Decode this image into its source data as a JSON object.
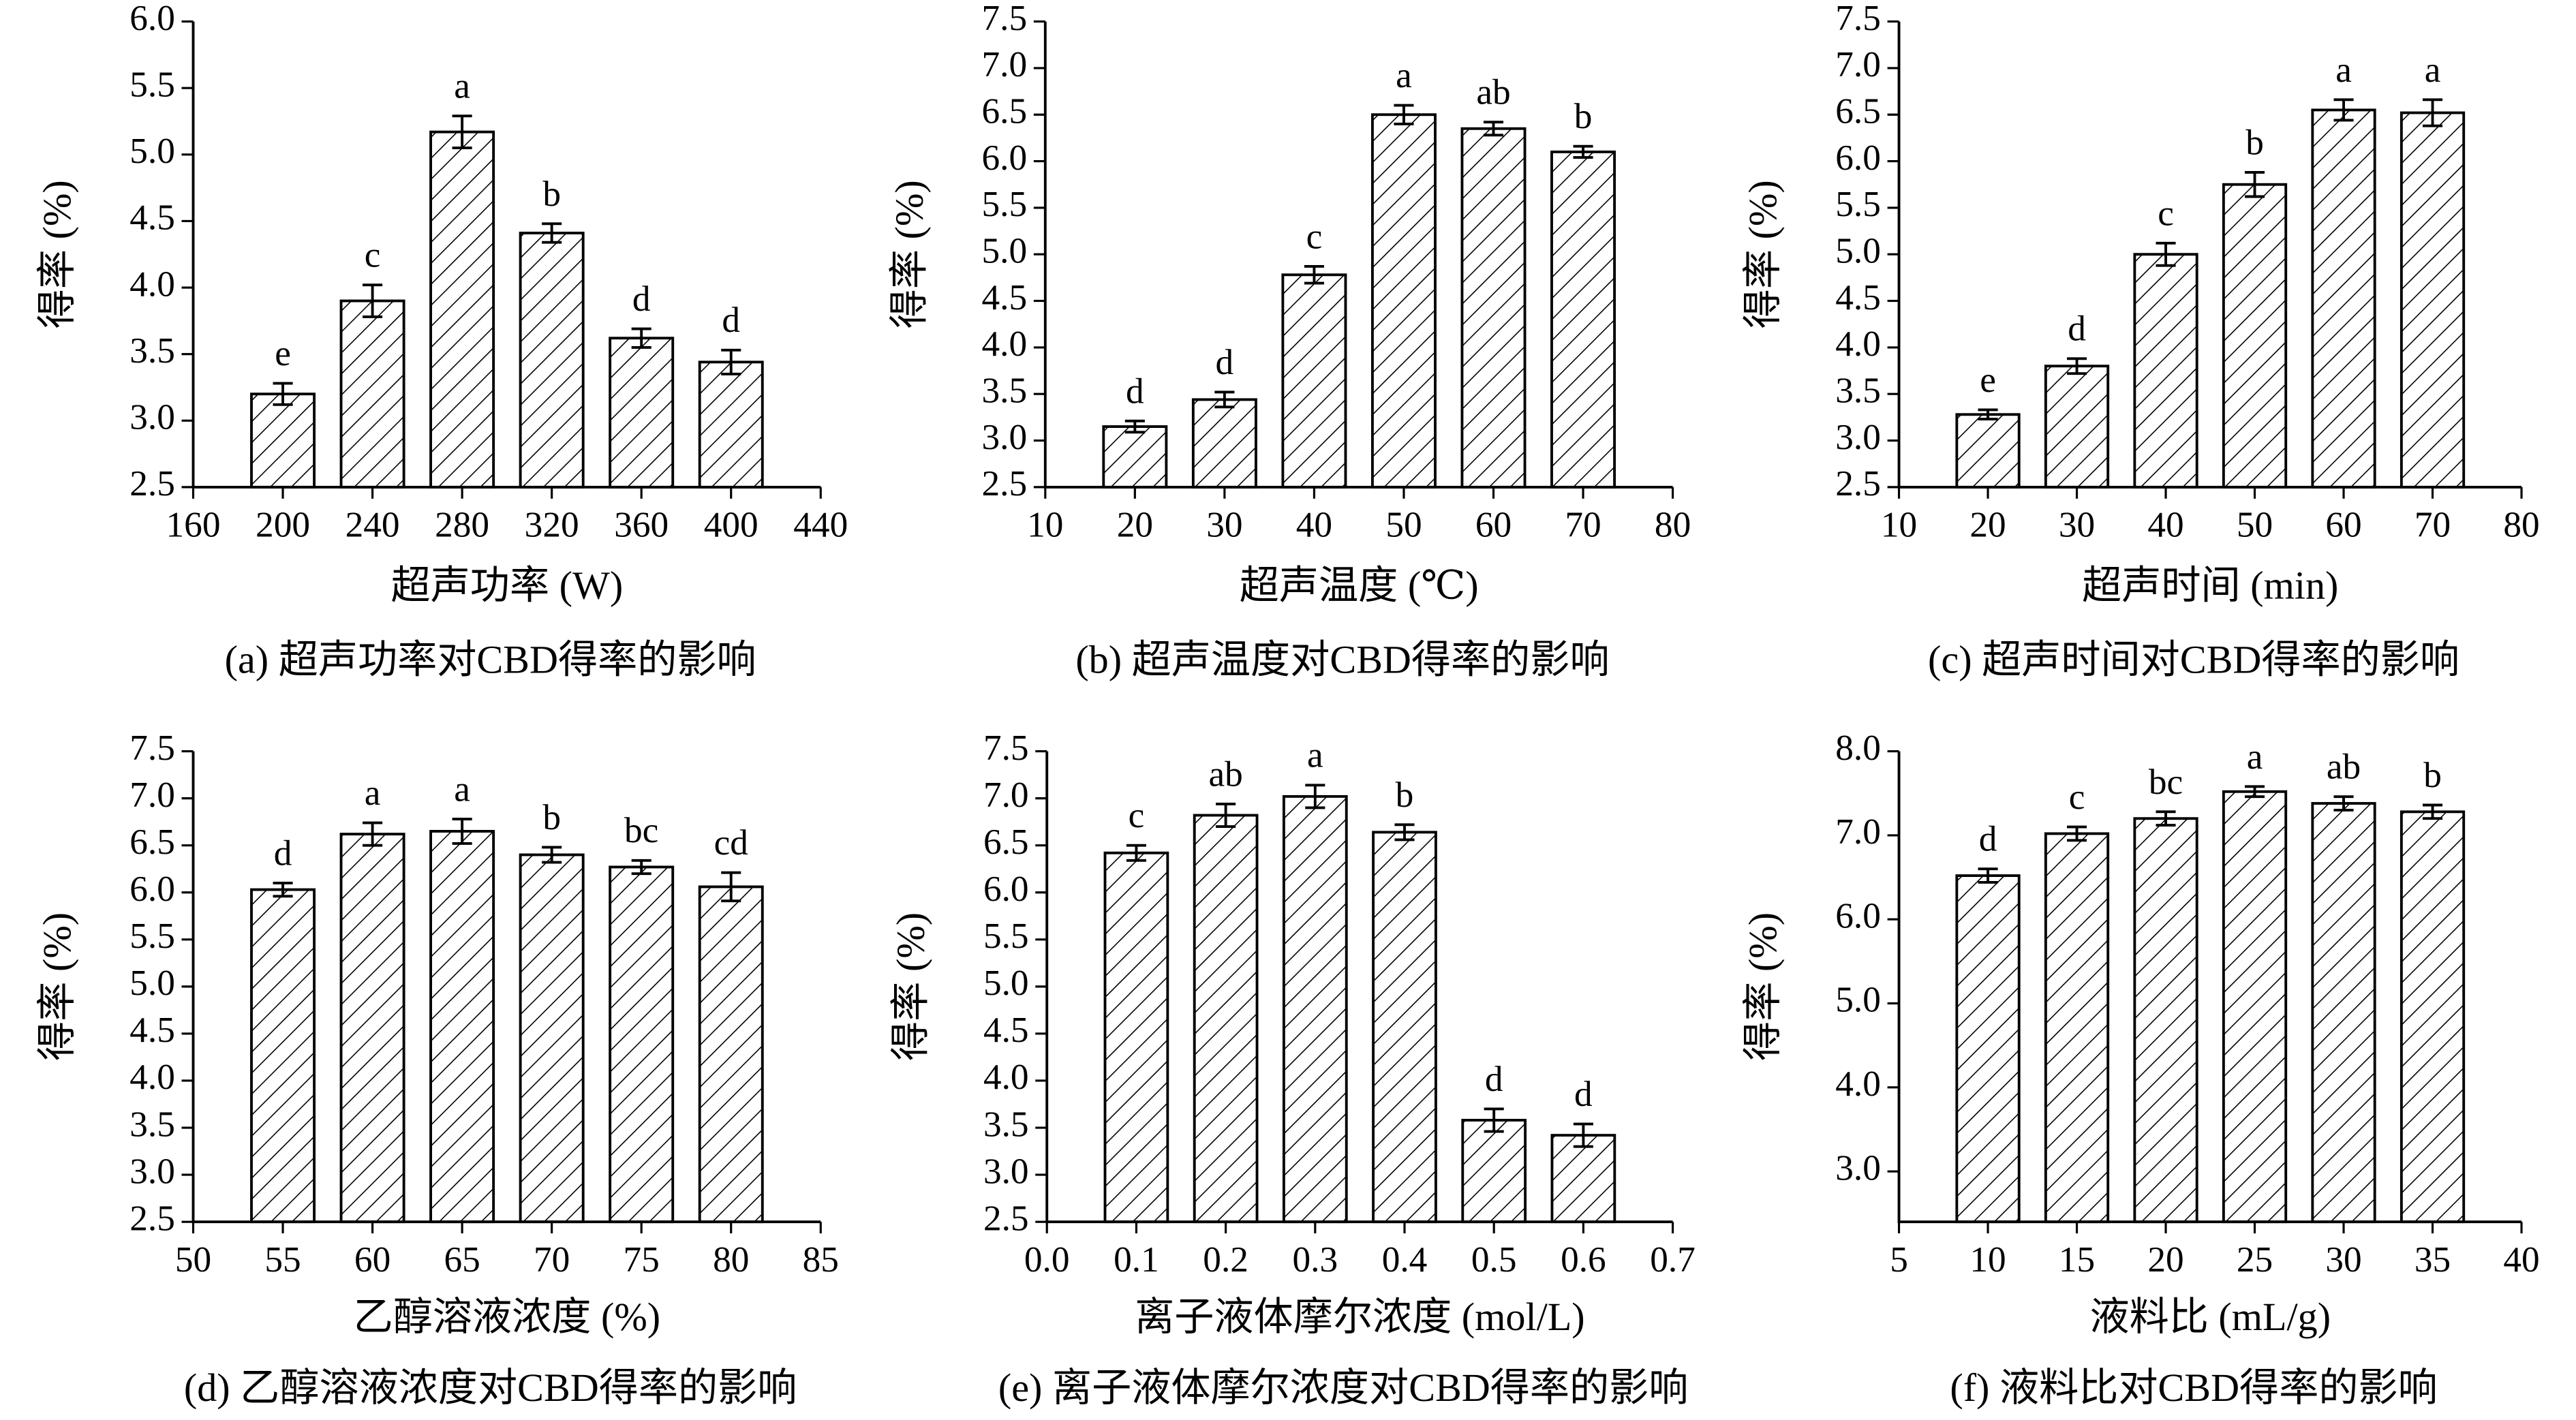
{
  "chart_data": [
    {
      "type": "bar",
      "title": "(a) 超声功率对CBD得率的影响",
      "x_label": "超声功率 (W)",
      "y_label": "得率 (%)",
      "x": [
        200,
        240,
        280,
        320,
        360,
        400
      ],
      "values": [
        3.2,
        3.9,
        5.17,
        4.41,
        3.62,
        3.44
      ],
      "errors": [
        0.08,
        0.12,
        0.12,
        0.07,
        0.07,
        0.09
      ],
      "annotations": [
        "e",
        "c",
        "a",
        "b",
        "d",
        "d"
      ],
      "color": "#000000",
      "xlim": [
        160,
        440
      ],
      "xticks": [
        160,
        200,
        240,
        280,
        320,
        360,
        400,
        440
      ],
      "ylim": [
        2.5,
        6
      ],
      "yticks": [
        2.5,
        {
          "value": 3,
          "label": "3.0"
        },
        3.5,
        {
          "value": 4,
          "label": "4.0"
        },
        4.5,
        {
          "value": 5,
          "label": "5.0"
        },
        5.5,
        {
          "value": 6,
          "label": "6.0"
        }
      ]
    },
    {
      "type": "bar",
      "title": "(b) 超声温度对CBD得率的影响",
      "x_label": "超声温度 (℃)",
      "y_label": "得率 (%)",
      "x": [
        20,
        30,
        40,
        50,
        60,
        70
      ],
      "values": [
        3.15,
        3.44,
        4.78,
        6.5,
        6.35,
        6.1
      ],
      "errors": [
        0.06,
        0.08,
        0.09,
        0.1,
        0.07,
        0.06
      ],
      "annotations": [
        "d",
        "d",
        "c",
        "a",
        "ab",
        "b"
      ],
      "color": "#000000",
      "xlim": [
        10,
        80
      ],
      "xticks": [
        10,
        20,
        30,
        40,
        50,
        60,
        70,
        80
      ],
      "ylim": [
        2.5,
        7.5
      ],
      "yticks": [
        2.5,
        {
          "value": 3,
          "label": "3.0"
        },
        3.5,
        {
          "value": 4,
          "label": "4.0"
        },
        4.5,
        {
          "value": 5,
          "label": "5.0"
        },
        5.5,
        {
          "value": 6,
          "label": "6.0"
        },
        6.5,
        {
          "value": 7,
          "label": "7.0"
        },
        7.5
      ]
    },
    {
      "type": "bar",
      "title": "(c) 超声时间对CBD得率的影响",
      "x_label": "超声时间 (min)",
      "y_label": "得率 (%)",
      "x": [
        20,
        30,
        40,
        50,
        60,
        70
      ],
      "values": [
        3.28,
        3.8,
        5.0,
        5.75,
        6.55,
        6.52
      ],
      "errors": [
        0.05,
        0.08,
        0.12,
        0.13,
        0.11,
        0.14
      ],
      "annotations": [
        "e",
        "d",
        "c",
        "b",
        "a",
        "a"
      ],
      "color": "#000000",
      "xlim": [
        10,
        80
      ],
      "xticks": [
        10,
        20,
        30,
        40,
        50,
        60,
        70,
        80
      ],
      "ylim": [
        2.5,
        7.5
      ],
      "yticks": [
        2.5,
        {
          "value": 3,
          "label": "3.0"
        },
        3.5,
        {
          "value": 4,
          "label": "4.0"
        },
        4.5,
        {
          "value": 5,
          "label": "5.0"
        },
        5.5,
        {
          "value": 6,
          "label": "6.0"
        },
        6.5,
        {
          "value": 7,
          "label": "7.0"
        },
        7.5
      ]
    },
    {
      "type": "bar",
      "title": "(d) 乙醇溶液浓度对CBD得率的影响",
      "x_label": "乙醇溶液浓度 (%)",
      "y_label": "得率 (%)",
      "x": [
        55,
        60,
        65,
        70,
        75,
        80
      ],
      "values": [
        6.03,
        6.62,
        6.65,
        6.4,
        6.27,
        6.06
      ],
      "errors": [
        0.07,
        0.12,
        0.13,
        0.08,
        0.07,
        0.15
      ],
      "annotations": [
        "d",
        "a",
        "a",
        "b",
        "bc",
        "cd"
      ],
      "color": "#000000",
      "xlim": [
        50,
        85
      ],
      "xticks": [
        50,
        55,
        60,
        65,
        70,
        75,
        80,
        85
      ],
      "ylim": [
        2.5,
        7.5
      ],
      "yticks": [
        2.5,
        {
          "value": 3,
          "label": "3.0"
        },
        3.5,
        {
          "value": 4,
          "label": "4.0"
        },
        4.5,
        {
          "value": 5,
          "label": "5.0"
        },
        5.5,
        {
          "value": 6,
          "label": "6.0"
        },
        6.5,
        {
          "value": 7,
          "label": "7.0"
        },
        7.5
      ]
    },
    {
      "type": "bar",
      "title": "(e) 离子液体摩尔浓度对CBD得率的影响",
      "x_label": "离子液体摩尔浓度 (mol/L)",
      "y_label": "得率 (%)",
      "x": [
        0.1,
        0.2,
        0.3,
        0.4,
        0.5,
        0.6
      ],
      "values": [
        6.42,
        6.82,
        7.02,
        6.64,
        3.58,
        3.42
      ],
      "errors": [
        0.08,
        0.12,
        0.12,
        0.08,
        0.12,
        0.12
      ],
      "annotations": [
        "c",
        "ab",
        "a",
        "b",
        "d",
        "d"
      ],
      "color": "#000000",
      "xlim": [
        0,
        0.7
      ],
      "xticks": [
        {
          "value": 0,
          "label": "0.0"
        },
        0.1,
        0.2,
        0.3,
        0.4,
        0.5,
        0.6,
        0.7
      ],
      "ylim": [
        2.5,
        7.5
      ],
      "yticks": [
        2.5,
        {
          "value": 3,
          "label": "3.0"
        },
        3.5,
        {
          "value": 4,
          "label": "4.0"
        },
        4.5,
        {
          "value": 5,
          "label": "5.0"
        },
        5.5,
        {
          "value": 6,
          "label": "6.0"
        },
        6.5,
        {
          "value": 7,
          "label": "7.0"
        },
        7.5
      ]
    },
    {
      "type": "bar",
      "title": "(f) 液料比对CBD得率的影响",
      "x_label": "液料比 (mL/g)",
      "y_label": "得率 (%)",
      "x": [
        10,
        15,
        20,
        25,
        30,
        35
      ],
      "values": [
        6.52,
        7.02,
        7.2,
        7.52,
        7.38,
        7.28
      ],
      "errors": [
        0.08,
        0.08,
        0.08,
        0.06,
        0.08,
        0.08
      ],
      "annotations": [
        "d",
        "c",
        "bc",
        "a",
        "ab",
        "b"
      ],
      "color": "#000000",
      "xlim": [
        5,
        40
      ],
      "xticks": [
        5,
        10,
        15,
        20,
        25,
        30,
        35,
        40
      ],
      "ylim": [
        2.4,
        8
      ],
      "yticks": [
        {
          "value": 3,
          "label": "3.0"
        },
        {
          "value": 4,
          "label": "4.0"
        },
        {
          "value": 5,
          "label": "5.0"
        },
        {
          "value": 6,
          "label": "6.0"
        },
        {
          "value": 7,
          "label": "7.0"
        },
        {
          "value": 8,
          "label": "8.0"
        }
      ]
    }
  ]
}
